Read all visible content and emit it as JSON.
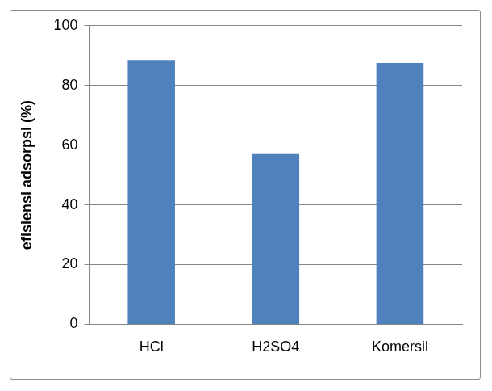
{
  "chart_data": {
    "type": "bar",
    "y_label": "efisiensi adsorpsi (%)",
    "categories": [
      "HCl",
      "H2SO4",
      "Komersil"
    ],
    "values": [
      88.5,
      57,
      87.5
    ],
    "color": "#4f81bd",
    "ylim": [
      0,
      100
    ],
    "yticks": [
      0,
      20,
      40,
      60,
      80,
      100
    ],
    "grid": true
  }
}
